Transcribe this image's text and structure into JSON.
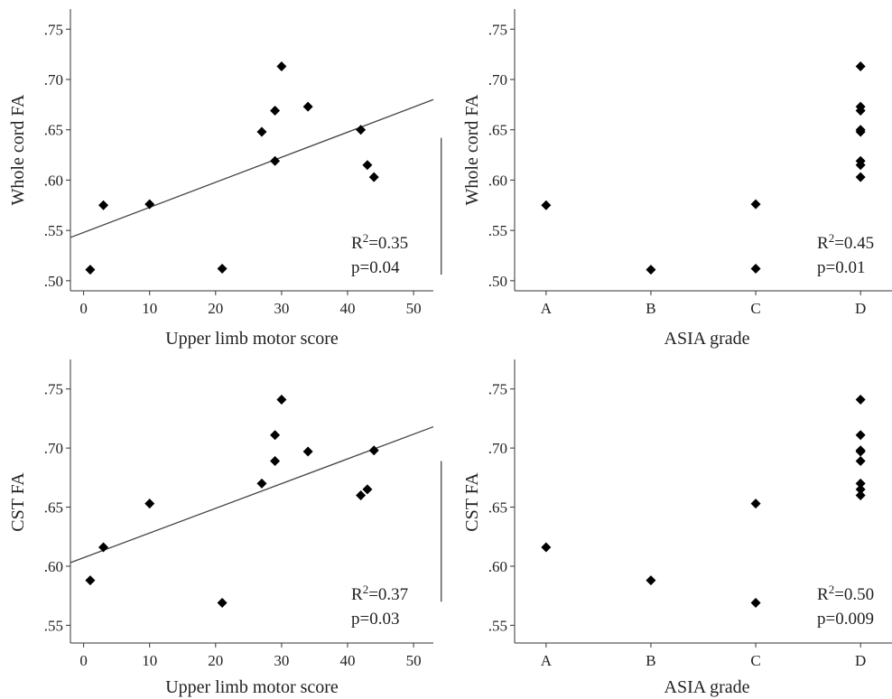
{
  "colors": {
    "marker": "#000000",
    "axis": "#333333",
    "fit_line": "#444444",
    "background": "#ffffff"
  },
  "chart_data": [
    {
      "type": "scatter",
      "marker": "diamond",
      "xlabel": "Upper limb motor score",
      "ylabel": "Whole cord FA",
      "xlim": [
        -2,
        53
      ],
      "ylim": [
        0.49,
        0.77
      ],
      "xticks": [
        0,
        10,
        20,
        30,
        40,
        50
      ],
      "xtick_labels": [
        "0",
        "10",
        "20",
        "30",
        "40",
        "50"
      ],
      "yticks": [
        0.5,
        0.55,
        0.6,
        0.65,
        0.7,
        0.75
      ],
      "ytick_labels": [
        ".50",
        ".55",
        ".60",
        ".65",
        ".70",
        ".75"
      ],
      "points": [
        {
          "x": 1,
          "y": 0.511
        },
        {
          "x": 3,
          "y": 0.575
        },
        {
          "x": 10,
          "y": 0.576
        },
        {
          "x": 21,
          "y": 0.512
        },
        {
          "x": 27,
          "y": 0.648
        },
        {
          "x": 29,
          "y": 0.669
        },
        {
          "x": 29,
          "y": 0.619
        },
        {
          "x": 30,
          "y": 0.713
        },
        {
          "x": 34,
          "y": 0.673
        },
        {
          "x": 42,
          "y": 0.65
        },
        {
          "x": 43,
          "y": 0.615
        },
        {
          "x": 44,
          "y": 0.603
        }
      ],
      "fit_line": {
        "x1": -2,
        "y1": 0.543,
        "x2": 53,
        "y2": 0.68
      },
      "annotation": {
        "r2_label": "R",
        "r2_sup": "2",
        "r2_value": "=0.35",
        "p_text": "p=0.04"
      },
      "grid": false
    },
    {
      "type": "scatter",
      "marker": "diamond",
      "xlabel": "ASIA grade",
      "ylabel": "Whole cord FA",
      "categories": [
        "A",
        "B",
        "C",
        "D"
      ],
      "xlim": [
        -0.3,
        3.3
      ],
      "ylim": [
        0.49,
        0.77
      ],
      "yticks": [
        0.5,
        0.55,
        0.6,
        0.65,
        0.7,
        0.75
      ],
      "ytick_labels": [
        ".50",
        ".55",
        ".60",
        ".65",
        ".70",
        ".75"
      ],
      "points": [
        {
          "x": "A",
          "y": 0.575
        },
        {
          "x": "B",
          "y": 0.511
        },
        {
          "x": "C",
          "y": 0.576
        },
        {
          "x": "C",
          "y": 0.512
        },
        {
          "x": "D",
          "y": 0.713
        },
        {
          "x": "D",
          "y": 0.673
        },
        {
          "x": "D",
          "y": 0.669
        },
        {
          "x": "D",
          "y": 0.65
        },
        {
          "x": "D",
          "y": 0.648
        },
        {
          "x": "D",
          "y": 0.619
        },
        {
          "x": "D",
          "y": 0.615
        },
        {
          "x": "D",
          "y": 0.603
        }
      ],
      "fit_line": {
        "x1": -0.3,
        "y1": 0.506,
        "x2": 3.3,
        "y2": 0.642
      },
      "annotation": {
        "r2_label": "R",
        "r2_sup": "2",
        "r2_value": "=0.45",
        "p_text": "p=0.01"
      },
      "grid": false
    },
    {
      "type": "scatter",
      "marker": "diamond",
      "xlabel": "Upper limb motor score",
      "ylabel": "CST FA",
      "xlim": [
        -2,
        53
      ],
      "ylim": [
        0.535,
        0.775
      ],
      "xticks": [
        0,
        10,
        20,
        30,
        40,
        50
      ],
      "xtick_labels": [
        "0",
        "10",
        "20",
        "30",
        "40",
        "50"
      ],
      "yticks": [
        0.55,
        0.6,
        0.65,
        0.7,
        0.75
      ],
      "ytick_labels": [
        ".55",
        ".60",
        ".65",
        ".70",
        ".75"
      ],
      "points": [
        {
          "x": 1,
          "y": 0.588
        },
        {
          "x": 3,
          "y": 0.616
        },
        {
          "x": 10,
          "y": 0.653
        },
        {
          "x": 21,
          "y": 0.569
        },
        {
          "x": 27,
          "y": 0.67
        },
        {
          "x": 29,
          "y": 0.711
        },
        {
          "x": 29,
          "y": 0.689
        },
        {
          "x": 30,
          "y": 0.741
        },
        {
          "x": 34,
          "y": 0.697
        },
        {
          "x": 42,
          "y": 0.66
        },
        {
          "x": 43,
          "y": 0.665
        },
        {
          "x": 44,
          "y": 0.698
        }
      ],
      "fit_line": {
        "x1": -2,
        "y1": 0.603,
        "x2": 53,
        "y2": 0.718
      },
      "annotation": {
        "r2_label": "R",
        "r2_sup": "2",
        "r2_value": "=0.37",
        "p_text": "p=0.03"
      },
      "grid": false
    },
    {
      "type": "scatter",
      "marker": "diamond",
      "xlabel": "ASIA grade",
      "ylabel": "CST FA",
      "categories": [
        "A",
        "B",
        "C",
        "D"
      ],
      "xlim": [
        -0.3,
        3.3
      ],
      "ylim": [
        0.535,
        0.775
      ],
      "yticks": [
        0.55,
        0.6,
        0.65,
        0.7,
        0.75
      ],
      "ytick_labels": [
        ".55",
        ".60",
        ".65",
        ".70",
        ".75"
      ],
      "points": [
        {
          "x": "A",
          "y": 0.616
        },
        {
          "x": "B",
          "y": 0.588
        },
        {
          "x": "C",
          "y": 0.653
        },
        {
          "x": "C",
          "y": 0.569
        },
        {
          "x": "D",
          "y": 0.741
        },
        {
          "x": "D",
          "y": 0.711
        },
        {
          "x": "D",
          "y": 0.698
        },
        {
          "x": "D",
          "y": 0.697
        },
        {
          "x": "D",
          "y": 0.689
        },
        {
          "x": "D",
          "y": 0.67
        },
        {
          "x": "D",
          "y": 0.665
        },
        {
          "x": "D",
          "y": 0.66
        }
      ],
      "fit_line": {
        "x1": -0.3,
        "y1": 0.57,
        "x2": 3.3,
        "y2": 0.689
      },
      "annotation": {
        "r2_label": "R",
        "r2_sup": "2",
        "r2_value": "=0.50",
        "p_text": "p=0.009"
      },
      "grid": false
    }
  ]
}
